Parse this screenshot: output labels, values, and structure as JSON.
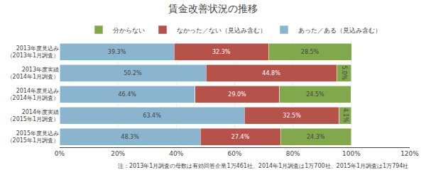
{
  "chart_data": {
    "type": "bar",
    "orientation": "horizontal",
    "stacked": true,
    "title": "賃金改善状況の推移",
    "categories": [
      "2013年度見込み\n（2013年1月調査）",
      "2013年度実績\n（2014年1月調査）",
      "2014年度見込み\n（2014年1月調査）",
      "2014年度実績\n（2015年1月調査）",
      "2015年度見込み\n（2015年1月調査）"
    ],
    "series": [
      {
        "name": "あった／ある（見込み含む）",
        "color": "#8BB4CE",
        "values": [
          39.3,
          50.2,
          46.4,
          63.4,
          48.3
        ],
        "value_labels": [
          "39.3%",
          "50.2%",
          "46.4%",
          "63.4%",
          "48.3%"
        ]
      },
      {
        "name": "なかった／ない（見込み含む）",
        "color": "#B5524A",
        "values": [
          32.3,
          44.8,
          29.0,
          32.5,
          27.4
        ],
        "value_labels": [
          "32.3%",
          "44.8%",
          "29.0%",
          "32.5%",
          "27.4%"
        ]
      },
      {
        "name": "分からない",
        "color": "#82A84E",
        "values": [
          28.5,
          5.0,
          24.5,
          4.1,
          24.3
        ],
        "value_labels": [
          "28.5%",
          "5.0%",
          "24.5%",
          "4.1%",
          "24.3%"
        ]
      }
    ],
    "data_labels": true,
    "xlim": [
      0,
      120
    ],
    "xticks": [
      {
        "value": 0,
        "label": "0%"
      },
      {
        "value": 20,
        "label": "20%"
      },
      {
        "value": 40,
        "label": "40%"
      },
      {
        "value": 60,
        "label": "60%"
      },
      {
        "value": 80,
        "label": "80%"
      },
      {
        "value": 100,
        "label": "100%"
      },
      {
        "value": 120,
        "label": "120%"
      }
    ],
    "grid": true,
    "annotations": [
      "注：2013年1月調査の母数は有効回答企業1万461社、2014年1月調査は1万700社、2015年1月調査は1万794社"
    ]
  }
}
